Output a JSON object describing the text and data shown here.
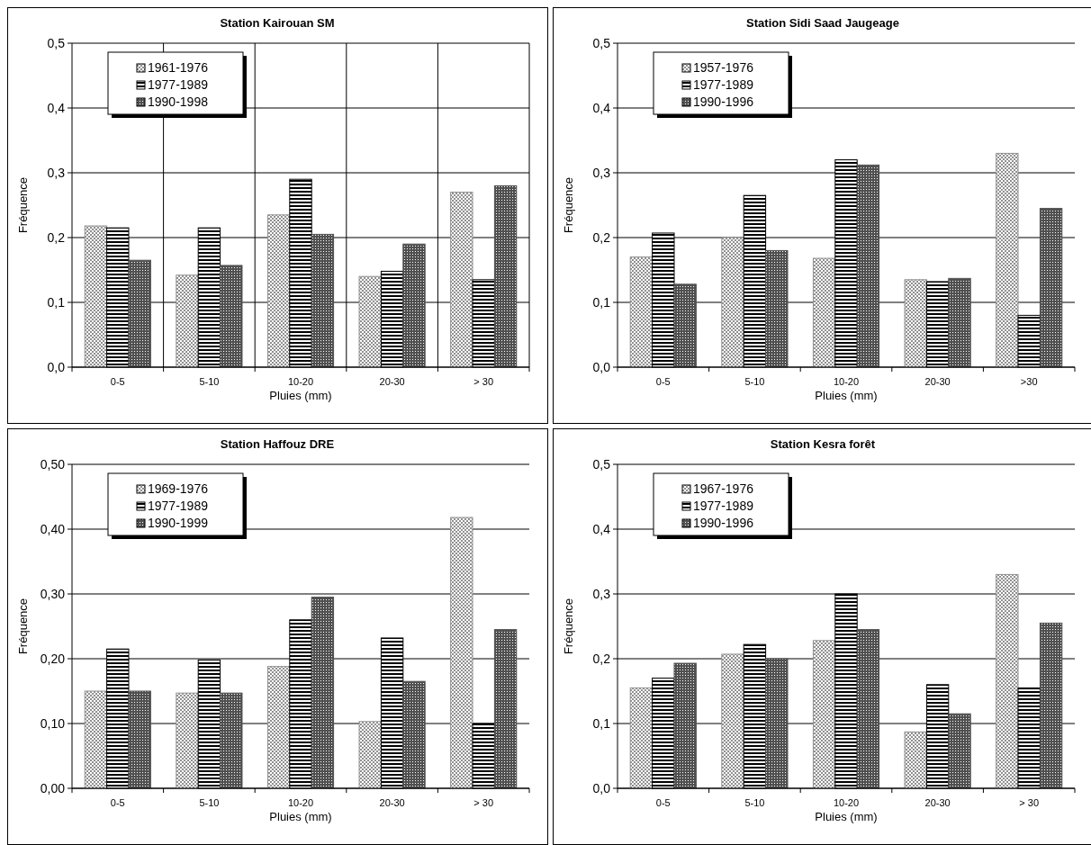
{
  "chart_data": [
    {
      "type": "bar",
      "title": "Station Kairouan SM",
      "xlabel": "Pluies (mm)",
      "ylabel": "Fréquence",
      "categories": [
        "0-5",
        "5-10",
        "10-20",
        "20-30",
        "> 30"
      ],
      "series": [
        {
          "name": "1961-1976",
          "color": "#909090",
          "values": [
            0.218,
            0.142,
            0.235,
            0.14,
            0.27
          ]
        },
        {
          "name": "1977-1989",
          "color": "#000000",
          "values": [
            0.215,
            0.215,
            0.29,
            0.148,
            0.135
          ]
        },
        {
          "name": "1990-1998",
          "color": "#505050",
          "values": [
            0.165,
            0.157,
            0.205,
            0.19,
            0.28
          ]
        }
      ],
      "ylim": [
        0,
        0.5
      ],
      "yticks": [
        {
          "value": 0,
          "label": "0,0"
        },
        {
          "value": 0.1,
          "label": "0,1"
        },
        {
          "value": 0.2,
          "label": "0,2"
        },
        {
          "value": 0.3,
          "label": "0,3"
        },
        {
          "value": 0.4,
          "label": "0,4"
        },
        {
          "value": 0.5,
          "label": "0,5"
        }
      ],
      "grid": true,
      "legend": "top left"
    },
    {
      "type": "bar",
      "title": "Station Sidi Saad Jaugeage",
      "xlabel": "Pluies (mm)",
      "ylabel": "Fréquence",
      "categories": [
        "0-5",
        "5-10",
        "10-20",
        "20-30",
        ">30"
      ],
      "series": [
        {
          "name": "1957-1976",
          "color": "#909090",
          "values": [
            0.17,
            0.2,
            0.168,
            0.135,
            0.33
          ]
        },
        {
          "name": "1977-1989",
          "color": "#000000",
          "values": [
            0.207,
            0.265,
            0.32,
            0.132,
            0.08
          ]
        },
        {
          "name": "1990-1996",
          "color": "#505050",
          "values": [
            0.128,
            0.18,
            0.312,
            0.137,
            0.245
          ]
        }
      ],
      "ylim": [
        0,
        0.5
      ],
      "yticks": [
        {
          "value": 0,
          "label": "0,0"
        },
        {
          "value": 0.1,
          "label": "0,1"
        },
        {
          "value": 0.2,
          "label": "0,2"
        },
        {
          "value": 0.3,
          "label": "0,3"
        },
        {
          "value": 0.4,
          "label": "0,4"
        },
        {
          "value": 0.5,
          "label": "0,5"
        }
      ],
      "grid": "y",
      "legend": "top left"
    },
    {
      "type": "bar",
      "title": "Station Haffouz DRE",
      "xlabel": "Pluies (mm)",
      "ylabel": "Fréquence",
      "categories": [
        "0-5",
        "5-10",
        "10-20",
        "20-30",
        "> 30"
      ],
      "series": [
        {
          "name": "1969-1976",
          "color": "#909090",
          "values": [
            0.15,
            0.147,
            0.188,
            0.103,
            0.418
          ]
        },
        {
          "name": "1977-1989",
          "color": "#000000",
          "values": [
            0.215,
            0.198,
            0.26,
            0.232,
            0.1
          ]
        },
        {
          "name": "1990-1999",
          "color": "#505050",
          "values": [
            0.15,
            0.147,
            0.295,
            0.165,
            0.245
          ]
        }
      ],
      "ylim": [
        0,
        0.5
      ],
      "yticks": [
        {
          "value": 0,
          "label": "0,00"
        },
        {
          "value": 0.1,
          "label": "0,10"
        },
        {
          "value": 0.2,
          "label": "0,20"
        },
        {
          "value": 0.3,
          "label": "0,30"
        },
        {
          "value": 0.4,
          "label": "0,40"
        },
        {
          "value": 0.5,
          "label": "0,50"
        }
      ],
      "grid": "y",
      "legend": "top left"
    },
    {
      "type": "bar",
      "title": "Station Kesra forêt",
      "xlabel": "Pluies (mm)",
      "ylabel": "Fréquence",
      "categories": [
        "0-5",
        "5-10",
        "10-20",
        "20-30",
        "> 30"
      ],
      "series": [
        {
          "name": "1967-1976",
          "color": "#909090",
          "values": [
            0.155,
            0.207,
            0.228,
            0.087,
            0.33
          ]
        },
        {
          "name": "1977-1989",
          "color": "#000000",
          "values": [
            0.17,
            0.222,
            0.3,
            0.16,
            0.155
          ]
        },
        {
          "name": "1990-1996",
          "color": "#505050",
          "values": [
            0.193,
            0.2,
            0.245,
            0.115,
            0.255
          ]
        }
      ],
      "ylim": [
        0,
        0.5
      ],
      "yticks": [
        {
          "value": 0,
          "label": "0,0"
        },
        {
          "value": 0.1,
          "label": "0,1"
        },
        {
          "value": 0.2,
          "label": "0,2"
        },
        {
          "value": 0.3,
          "label": "0,3"
        },
        {
          "value": 0.4,
          "label": "0,4"
        },
        {
          "value": 0.5,
          "label": "0,5"
        }
      ],
      "grid": "y",
      "legend": "top left"
    }
  ]
}
